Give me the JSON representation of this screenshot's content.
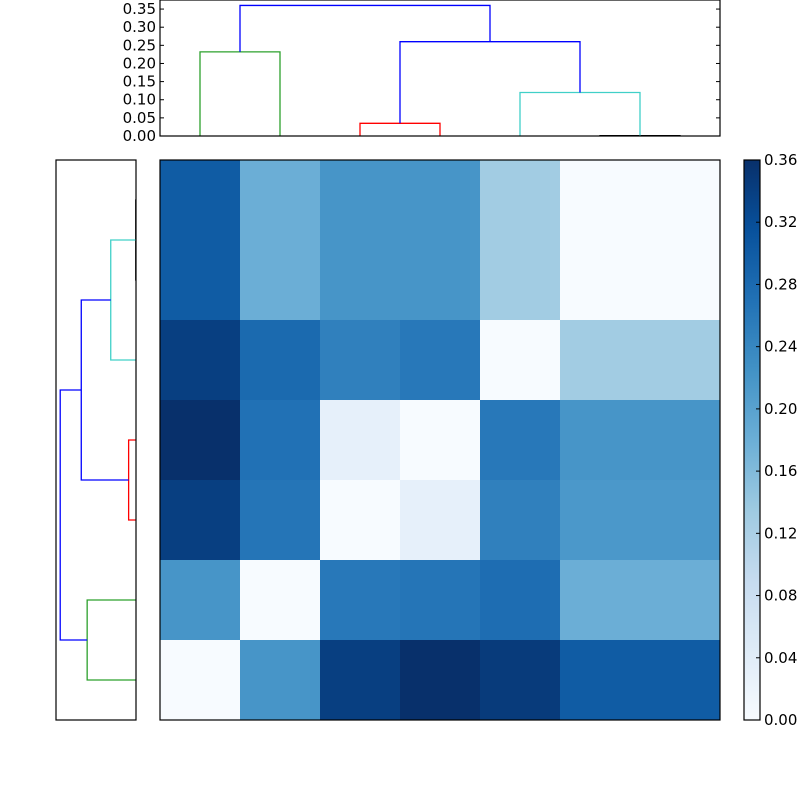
{
  "chart_data": [
    {
      "type": "dendrogram",
      "orientation": "top",
      "ylim": [
        0,
        0.375
      ],
      "yticks": [
        "0.00",
        "0.05",
        "0.10",
        "0.15",
        "0.20",
        "0.25",
        "0.30",
        "0.35"
      ],
      "ytick_values": [
        0,
        0.05,
        0.1,
        0.15,
        0.2,
        0.25,
        0.3,
        0.35
      ],
      "leaf_count": 7,
      "links": [
        {
          "color": "#2ca02c",
          "icoord": [
            5,
            5,
            15,
            15
          ],
          "dcoord": [
            0,
            0.232,
            0.232,
            0
          ]
        },
        {
          "color": "#ff0000",
          "icoord": [
            25,
            25,
            35,
            35
          ],
          "dcoord": [
            0,
            0.035,
            0.035,
            0
          ]
        },
        {
          "color": "#000000",
          "icoord": [
            55,
            55,
            65,
            65
          ],
          "dcoord": [
            0,
            0.001,
            0.001,
            0
          ]
        },
        {
          "color": "#40d0c8",
          "icoord": [
            45,
            45,
            60,
            60
          ],
          "dcoord": [
            0,
            0.12,
            0.12,
            0.001
          ]
        },
        {
          "color": "#0000ff",
          "icoord": [
            30,
            30,
            52.5,
            52.5
          ],
          "dcoord": [
            0.035,
            0.26,
            0.26,
            0.12
          ]
        },
        {
          "color": "#0000ff",
          "icoord": [
            10,
            10,
            41.25,
            41.25
          ],
          "dcoord": [
            0.232,
            0.36,
            0.36,
            0.26
          ]
        }
      ]
    },
    {
      "type": "dendrogram",
      "orientation": "left",
      "xlim": [
        0.38,
        0
      ],
      "leaf_count": 7,
      "links": [
        {
          "color": "#000000",
          "icoord": [
            5,
            5,
            15,
            15
          ],
          "dcoord": [
            0,
            0.001,
            0.001,
            0
          ]
        },
        {
          "color": "#40d0c8",
          "icoord": [
            10,
            10,
            25,
            25
          ],
          "dcoord": [
            0.001,
            0.12,
            0.12,
            0
          ]
        },
        {
          "color": "#ff0000",
          "icoord": [
            35,
            35,
            45,
            45
          ],
          "dcoord": [
            0,
            0.035,
            0.035,
            0
          ]
        },
        {
          "color": "#0000ff",
          "icoord": [
            17.5,
            17.5,
            40,
            40
          ],
          "dcoord": [
            0.12,
            0.26,
            0.26,
            0.035
          ]
        },
        {
          "color": "#2ca02c",
          "icoord": [
            55,
            55,
            65,
            65
          ],
          "dcoord": [
            0,
            0.232,
            0.232,
            0
          ]
        },
        {
          "color": "#0000ff",
          "icoord": [
            28.75,
            28.75,
            60,
            60
          ],
          "dcoord": [
            0.26,
            0.36,
            0.36,
            0.232
          ]
        }
      ]
    },
    {
      "type": "heatmap",
      "colormap": "Blues",
      "vmin": 0,
      "vmax": 0.36,
      "values": [
        [
          0.3,
          0.18,
          0.22,
          0.22,
          0.13,
          0.0,
          0.0
        ],
        [
          0.3,
          0.18,
          0.22,
          0.22,
          0.13,
          0.0,
          0.0
        ],
        [
          0.34,
          0.28,
          0.25,
          0.26,
          0.0,
          0.13,
          0.13
        ],
        [
          0.36,
          0.27,
          0.03,
          0.0,
          0.26,
          0.22,
          0.22
        ],
        [
          0.34,
          0.265,
          0.0,
          0.03,
          0.25,
          0.215,
          0.215
        ],
        [
          0.22,
          0.0,
          0.26,
          0.265,
          0.275,
          0.18,
          0.18
        ],
        [
          0.0,
          0.22,
          0.34,
          0.36,
          0.345,
          0.3,
          0.3
        ]
      ],
      "colorbar": {
        "ticks": [
          "0.00",
          "0.04",
          "0.08",
          "0.12",
          "0.16",
          "0.20",
          "0.24",
          "0.28",
          "0.32",
          "0.36"
        ],
        "tick_values": [
          0,
          0.04,
          0.08,
          0.12,
          0.16,
          0.2,
          0.24,
          0.28,
          0.32,
          0.36
        ]
      }
    }
  ]
}
